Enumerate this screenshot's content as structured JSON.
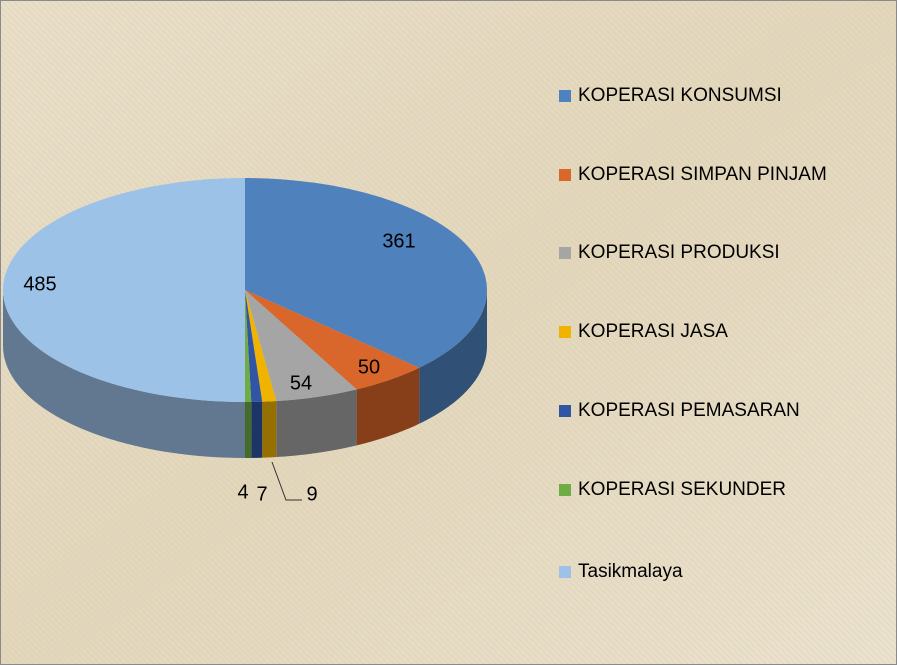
{
  "chart_data": {
    "type": "pie3d",
    "categories": [
      "KOPERASI KONSUMSI",
      "KOPERASI SIMPAN PINJAM",
      "KOPERASI PRODUKSI",
      "KOPERASI JASA",
      "KOPERASI PEMASARAN",
      "KOPERASI SEKUNDER",
      "Tasikmalaya"
    ],
    "values": [
      361,
      50,
      54,
      9,
      7,
      4,
      485
    ],
    "colors": [
      "#4f81bd",
      "#d9662a",
      "#a5a5a5",
      "#f0b400",
      "#2f55a4",
      "#6fac46",
      "#9cc2e8"
    ],
    "legend": "right"
  }
}
